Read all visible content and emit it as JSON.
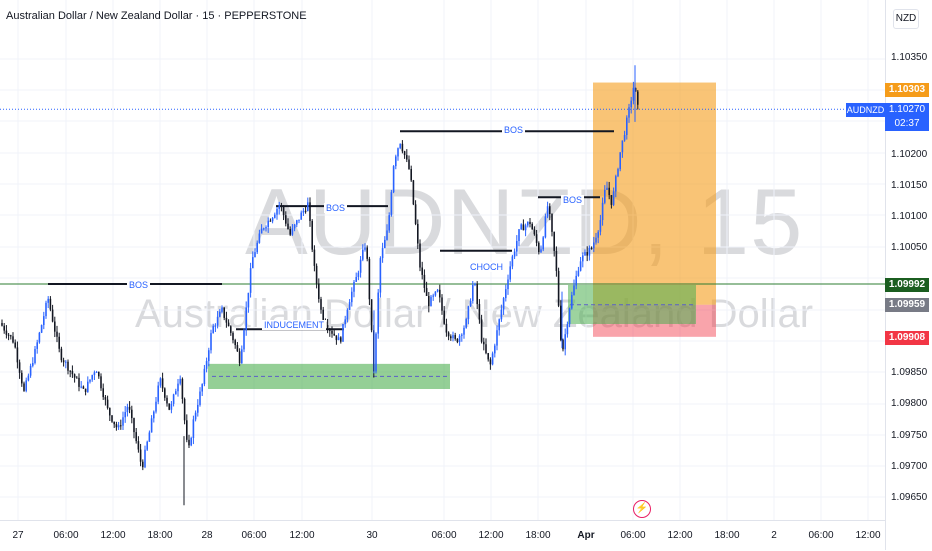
{
  "header": {
    "title": "Australian Dollar / New Zealand Dollar · 15 · PEPPERSTONE"
  },
  "watermark": {
    "symbol": "AUDNZD, 15",
    "name": "Australian Dollar / New Zealand Dollar"
  },
  "price_axis": {
    "currency": "NZD",
    "ticks": [
      "1.10350",
      "1.10200",
      "1.10150",
      "1.10100",
      "1.10050",
      "1.09850",
      "1.09800",
      "1.09750",
      "1.09700",
      "1.09650"
    ],
    "badges": {
      "target": {
        "value": "1.10303",
        "color": "#f59c1a"
      },
      "level_green": {
        "value": "1.09992",
        "color": "#1b5e20"
      },
      "entry": {
        "value": "1.09959",
        "color": "#787b86"
      },
      "stop": {
        "value": "1.09908",
        "color": "#f23645"
      }
    },
    "current": {
      "symbol": "AUDNZD",
      "price": "1.10270",
      "countdown": "02:37",
      "color": "#2962ff"
    }
  },
  "time_axis": {
    "ticks": [
      "27",
      "06:00",
      "12:00",
      "18:00",
      "28",
      "06:00",
      "12:00",
      "30",
      "06:00",
      "12:00",
      "18:00",
      "Apr",
      "06:00",
      "12:00",
      "18:00",
      "2",
      "06:00",
      "12:00"
    ]
  },
  "annotations": {
    "bos_1": "BOS",
    "bos_2": "BOS",
    "bos_3": "BOS",
    "bos_4": "BOS",
    "inducement": "INDUCEMENT",
    "choch": "CHOCH"
  },
  "chart_data": {
    "type": "candlestick",
    "symbol": "AUDNZD",
    "timeframe": "15",
    "ylim": [
      1.0963,
      1.1043
    ],
    "x_ticks": [
      "27",
      "06:00",
      "12:00",
      "18:00",
      "28",
      "06:00",
      "12:00",
      "30",
      "06:00",
      "12:00",
      "18:00",
      "Apr",
      "06:00",
      "12:00",
      "18:00",
      "2",
      "06:00",
      "12:00"
    ],
    "close_path": [
      [
        0,
        1.0993
      ],
      [
        14,
        1.099
      ],
      [
        24,
        1.0982
      ],
      [
        36,
        1.0989
      ],
      [
        48,
        1.0997
      ],
      [
        60,
        1.0988
      ],
      [
        72,
        1.0985
      ],
      [
        84,
        1.0982
      ],
      [
        96,
        1.0986
      ],
      [
        108,
        1.0979
      ],
      [
        118,
        1.0976
      ],
      [
        128,
        1.098
      ],
      [
        142,
        1.097
      ],
      [
        150,
        1.0976
      ],
      [
        160,
        1.0984
      ],
      [
        170,
        1.0979
      ],
      [
        180,
        1.0985
      ],
      [
        188,
        1.0972
      ],
      [
        194,
        1.0978
      ],
      [
        202,
        1.0983
      ],
      [
        212,
        1.0992
      ],
      [
        222,
        1.0995
      ],
      [
        232,
        1.0991
      ],
      [
        240,
        1.0987
      ],
      [
        252,
        1.1003
      ],
      [
        262,
        1.1008
      ],
      [
        272,
        1.101
      ],
      [
        280,
        1.1012
      ],
      [
        290,
        1.1007
      ],
      [
        300,
        1.101
      ],
      [
        308,
        1.1012
      ],
      [
        314,
        1.1002
      ],
      [
        322,
        1.0994
      ],
      [
        330,
        1.0992
      ],
      [
        340,
        1.099
      ],
      [
        348,
        1.0996
      ],
      [
        356,
        1.1
      ],
      [
        366,
        1.1006
      ],
      [
        374,
        1.0985
      ],
      [
        380,
        1.1003
      ],
      [
        388,
        1.1008
      ],
      [
        394,
        1.1019
      ],
      [
        400,
        1.1022
      ],
      [
        410,
        1.1017
      ],
      [
        420,
        1.1002
      ],
      [
        428,
        1.0996
      ],
      [
        438,
        1.0998
      ],
      [
        446,
        1.0992
      ],
      [
        456,
        1.099
      ],
      [
        466,
        1.0993
      ],
      [
        474,
        1.1
      ],
      [
        482,
        1.099
      ],
      [
        490,
        1.0986
      ],
      [
        500,
        1.0994
      ],
      [
        510,
        1.1002
      ],
      [
        520,
        1.1008
      ],
      [
        530,
        1.1009
      ],
      [
        540,
        1.1004
      ],
      [
        548,
        1.1012
      ],
      [
        556,
        1.1002
      ],
      [
        562,
        1.0988
      ],
      [
        570,
        1.0996
      ],
      [
        580,
        1.1003
      ],
      [
        592,
        1.1005
      ],
      [
        600,
        1.1009
      ],
      [
        606,
        1.1015
      ],
      [
        612,
        1.1012
      ],
      [
        620,
        1.102
      ],
      [
        628,
        1.1026
      ],
      [
        634,
        1.1031
      ],
      [
        638,
        1.1027
      ]
    ],
    "zones": [
      {
        "label": "demand zone",
        "y_top": 1.09865,
        "y_bottom": 1.09825,
        "mid": 1.09845
      },
      {
        "label": "target",
        "y_top": 1.10303,
        "y_bottom": 1.09959
      },
      {
        "label": "stop",
        "y_top": 1.09959,
        "y_bottom": 1.09908
      },
      {
        "label": "entry",
        "value": 1.09959
      }
    ],
    "levels": [
      {
        "label": "BOS",
        "value": 1.09992
      },
      {
        "label": "BOS",
        "value": 1.10116
      },
      {
        "label": "BOS",
        "value": 1.10235
      },
      {
        "label": "BOS",
        "value": 1.1013
      },
      {
        "label": "INDUCEMENT",
        "value": 1.0992
      },
      {
        "label": "CHOCH",
        "value": 1.10045
      },
      {
        "label": "horizontal level",
        "value": 1.09992
      },
      {
        "label": "current price",
        "value": 1.1027
      }
    ]
  }
}
